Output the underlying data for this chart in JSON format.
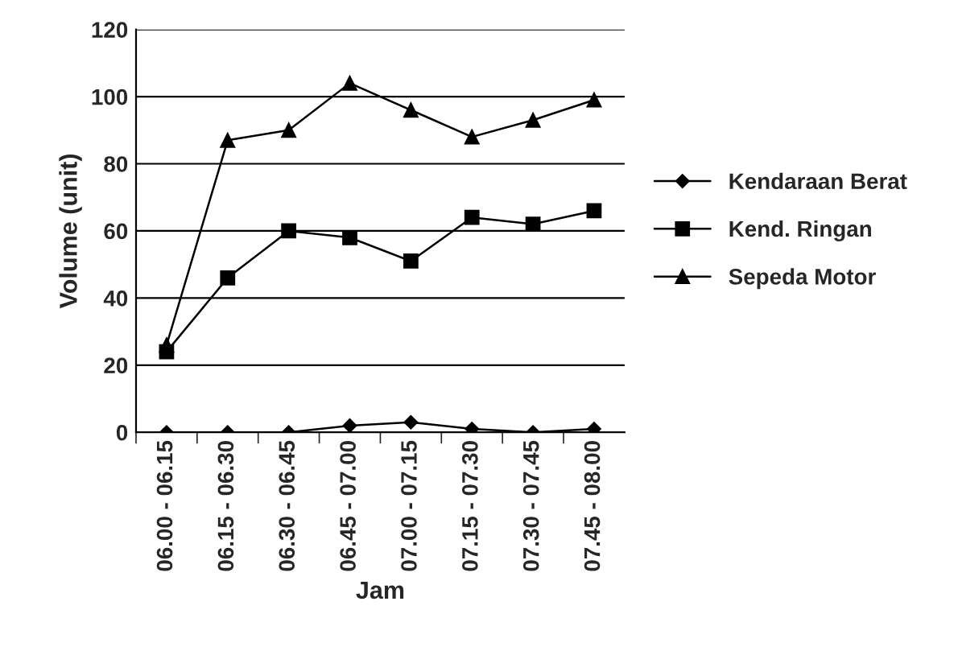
{
  "chart_data": {
    "type": "line",
    "xlabel": "Jam",
    "ylabel": "Volume (unit)",
    "categories": [
      "06.00 - 06.15",
      "06.15 - 06.30",
      "06.30 - 06.45",
      "06.45 - 07.00",
      "07.00 - 07.15",
      "07.15 - 07.30",
      "07.30 - 07.45",
      "07.45 - 08.00"
    ],
    "series": [
      {
        "name": "Kendaraan Berat",
        "color": "#000000",
        "marker": "diamond",
        "values": [
          0,
          0,
          0,
          2,
          3,
          1,
          0,
          1
        ]
      },
      {
        "name": "Kend. Ringan",
        "color": "#000000",
        "marker": "square",
        "values": [
          24,
          46,
          60,
          58,
          51,
          64,
          62,
          66
        ]
      },
      {
        "name": "Sepeda Motor",
        "color": "#000000",
        "marker": "triangle",
        "values": [
          26,
          87,
          90,
          104,
          96,
          88,
          93,
          99
        ]
      }
    ],
    "ylim": [
      0,
      120
    ],
    "yticks": [
      0,
      20,
      40,
      60,
      80,
      100,
      120
    ],
    "grid": "y",
    "legend": "right",
    "line_style": "solid"
  }
}
